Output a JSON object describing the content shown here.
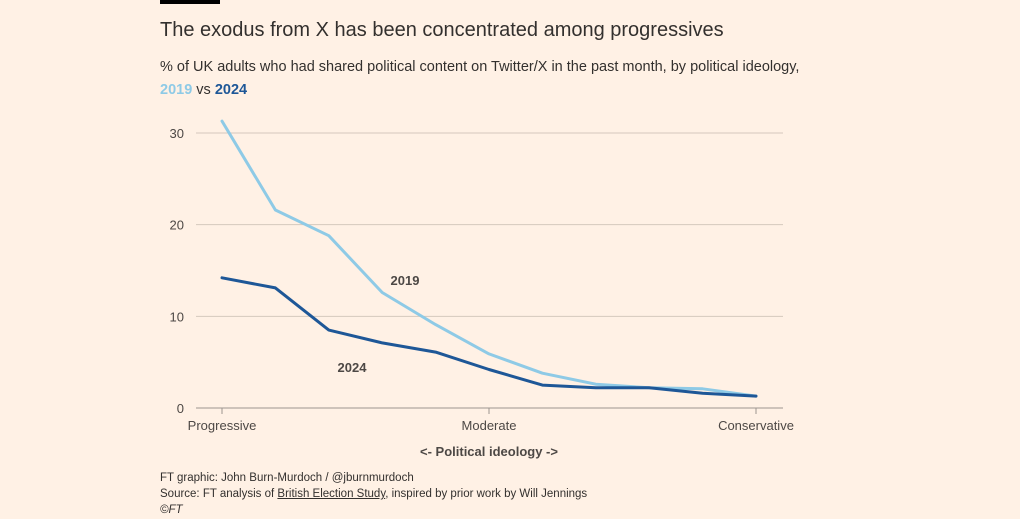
{
  "header": {
    "title": "The exodus from X has been concentrated among progressives",
    "subtitle_main": "% of UK adults who had shared political content on Twitter/X in the past month, by political ideology,",
    "subtitle_key_a": "2019",
    "subtitle_vs": "vs",
    "subtitle_key_b": "2024"
  },
  "colors": {
    "series_2019": "#8ecae6",
    "series_2024": "#1e5797",
    "background": "#fff1e5",
    "gridline": "#d4c8bd"
  },
  "chart_data": {
    "type": "line",
    "title": "The exodus from X has been concentrated among progressives",
    "xlabel": "<- Political ideology ->",
    "ylabel": "",
    "x": [
      0,
      1,
      2,
      3,
      4,
      5,
      6,
      7,
      8,
      9,
      10
    ],
    "x_tick_values": [
      0,
      5,
      10
    ],
    "x_tick_labels": [
      "Progressive",
      "Moderate",
      "Conservative"
    ],
    "ylim": [
      0,
      30
    ],
    "y_ticks": [
      0,
      10,
      20,
      30
    ],
    "grid": true,
    "series": [
      {
        "name": "2019",
        "values": [
          31.3,
          21.6,
          18.8,
          12.6,
          9.1,
          5.9,
          3.8,
          2.6,
          2.2,
          2.1,
          1.3
        ]
      },
      {
        "name": "2024",
        "values": [
          14.2,
          13.1,
          8.5,
          7.1,
          6.1,
          4.2,
          2.5,
          2.2,
          2.2,
          1.6,
          1.3
        ]
      }
    ]
  },
  "footer": {
    "credit": "FT graphic: John Burn-Murdoch / @jburnmurdoch",
    "source_prefix": "Source: FT analysis of ",
    "source_link": "British Election Study",
    "source_suffix": ", inspired by prior work by Will Jennings",
    "copyright": "©FT"
  }
}
